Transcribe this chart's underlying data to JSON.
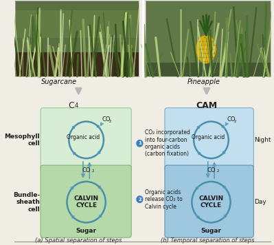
{
  "bg_color": "#f0ede5",
  "sugarcane_label": "Sugarcane",
  "pineapple_label": "Pineapple",
  "cam_label": "CAM",
  "mesophyll_label": "Mesophyll\ncell",
  "bundle_label": "Bundle-\nsheath\ncell",
  "night_label": "Night",
  "day_label": "Day",
  "organic_acid_label": "Organic acid",
  "calvin_cycle_label": "CALVIN\nCYCLE",
  "sugar_label": "Sugar",
  "annotation1": "CO₂ incorporated\ninto four-carbon\norganic acids\n(carbon fixation)",
  "annotation2": "Organic acids\nrelease CO₂ to\nCalvin cycle",
  "caption_a": "(a) Spatial separation of steps",
  "caption_b": "(b) Temporal separation of steps",
  "c4_top_box_color": "#d8edd5",
  "c4_bot_box_color": "#b5d9a8",
  "cam_box_color_top": "#c2dff0",
  "cam_box_color_bot": "#9dc8e0",
  "arrow_color": "#5a9db8",
  "circle_edge_color": "#4a8faa",
  "text_dark": "#1a1a1a",
  "annot_circle_color": "#3a7fc1",
  "photo_sep_color": "#ffffff",
  "gray_arrow_color": "#b0b0b0"
}
